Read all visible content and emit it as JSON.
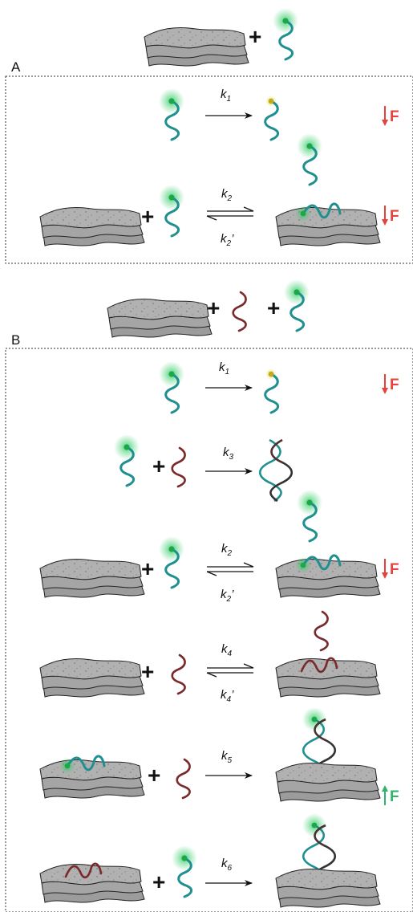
{
  "panels": [
    {
      "label": "A"
    },
    {
      "label": "B"
    }
  ],
  "rates": {
    "k1": {
      "base": "k",
      "sub": "1"
    },
    "k2": {
      "base": "k",
      "sub": "2"
    },
    "k2p": {
      "base": "k",
      "sub": "2",
      "prime": "’"
    },
    "k3": {
      "base": "k",
      "sub": "3"
    },
    "k4": {
      "base": "k",
      "sub": "4"
    },
    "k4p": {
      "base": "k",
      "sub": "4",
      "prime": "’"
    },
    "k5": {
      "base": "k",
      "sub": "5"
    },
    "k6": {
      "base": "k",
      "sub": "6"
    }
  },
  "signals": {
    "fluorescence_letter": "F",
    "decrease_color": "#e8403a",
    "increase_color": "#2fb56b"
  },
  "colors": {
    "probe_strand": "#1f8f8f",
    "target_strand": "#7a2a2a",
    "fluorophore_glow": "#33cc66",
    "fluorophore_dot": "#1aa84a",
    "quenched_dot": "#d8b11a",
    "sheet_fill": "#a9a9a9",
    "sheet_edge": "#222222"
  },
  "icons": {
    "sheet": "graphene-oxide-sheet-stack-icon",
    "probe": "fluorescent-probe-strand-icon",
    "target": "target-strand-icon",
    "duplex": "double-helix-icon"
  }
}
